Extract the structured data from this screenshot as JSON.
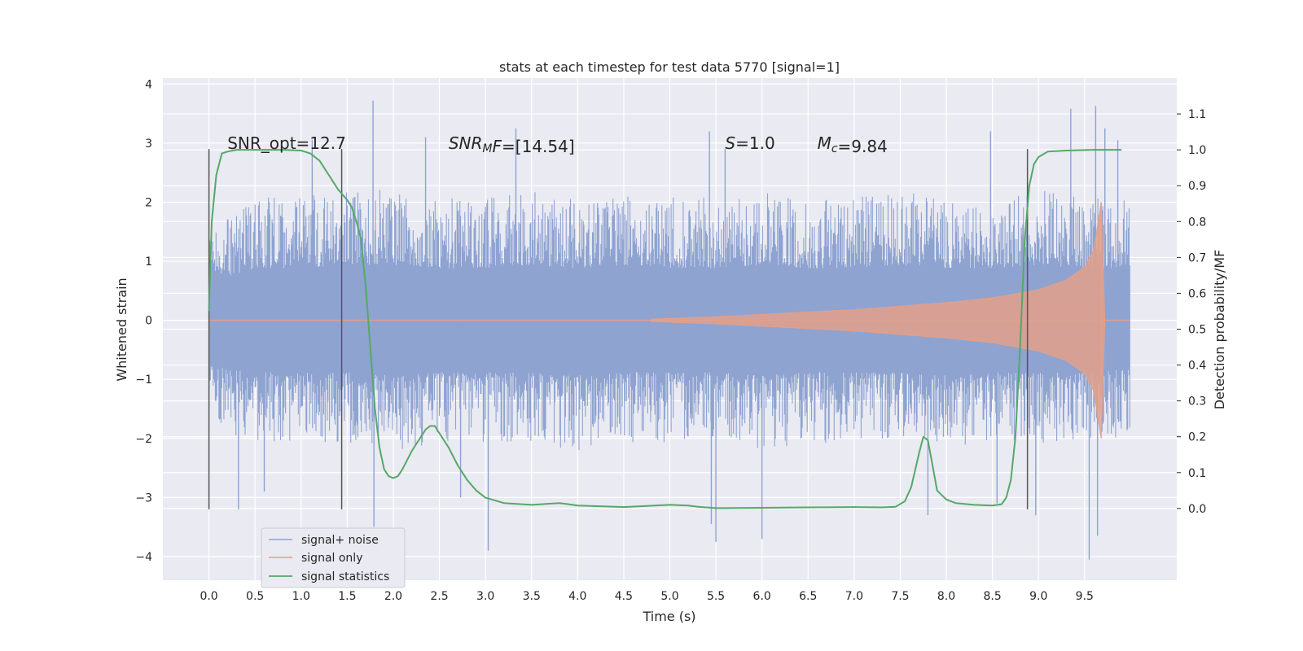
{
  "chart_data": {
    "type": "line",
    "title": "stats at each timestep for test data 5770 [signal=1]",
    "xlabel": "Time (s)",
    "ylabel": "Whitened strain",
    "y2label": "Detection probability/MF",
    "xlim": [
      -0.5,
      10.5
    ],
    "ylim": [
      -4.4,
      4.1
    ],
    "y2lim": [
      -0.2,
      1.2
    ],
    "x_ticks": [
      0.0,
      0.5,
      1.0,
      1.5,
      2.0,
      2.5,
      3.0,
      3.5,
      4.0,
      4.5,
      5.0,
      5.5,
      6.0,
      6.5,
      7.0,
      7.5,
      8.0,
      8.5,
      9.0,
      9.5
    ],
    "x_tick_labels": [
      "0.0",
      "0.5",
      "1.0",
      "1.5",
      "2.0",
      "2.5",
      "3.0",
      "3.5",
      "4.0",
      "4.5",
      "5.0",
      "5.5",
      "6.0",
      "6.5",
      "7.0",
      "7.5",
      "8.0",
      "8.5",
      "9.0",
      "9.5"
    ],
    "y_ticks": [
      -4,
      -3,
      -2,
      -1,
      0,
      1,
      2,
      3,
      4
    ],
    "y_tick_labels": [
      "−4",
      "−3",
      "−2",
      "−1",
      "0",
      "1",
      "2",
      "3",
      "4"
    ],
    "y2_ticks": [
      0.0,
      0.1,
      0.2,
      0.3,
      0.4,
      0.5,
      0.6,
      0.7,
      0.8,
      0.9,
      1.0,
      1.1
    ],
    "y2_tick_labels": [
      "0.0",
      "0.1",
      "0.2",
      "0.3",
      "0.4",
      "0.5",
      "0.6",
      "0.7",
      "0.8",
      "0.9",
      "1.0",
      "1.1"
    ],
    "grid": true,
    "legend": {
      "placement": "lower-left",
      "entries": [
        {
          "label": "signal+ noise",
          "color": "#8ea3d0"
        },
        {
          "label": "signal only",
          "color": "#e3a08a"
        },
        {
          "label": "signal statistics",
          "color": "#55a868"
        }
      ]
    },
    "annotations": [
      {
        "id": "snr-opt",
        "x": 0.2,
        "y": 2.9,
        "parts": [
          {
            "t": "SNR_opt=12.7"
          }
        ]
      },
      {
        "id": "snr-mf",
        "x": 2.6,
        "y": 2.9,
        "parts": [
          {
            "t": "SNR",
            "i": true
          },
          {
            "t": "M",
            "i": true,
            "sub": true
          },
          {
            "t": "F",
            "i": true
          },
          {
            "t": "=[14.54]"
          }
        ]
      },
      {
        "id": "s-value",
        "x": 5.6,
        "y": 2.9,
        "parts": [
          {
            "t": "S",
            "i": true
          },
          {
            "t": "=1.0"
          }
        ]
      },
      {
        "id": "mc-value",
        "x": 6.6,
        "y": 2.9,
        "parts": [
          {
            "t": "M",
            "i": true
          },
          {
            "t": "c",
            "i": true,
            "sub": true
          },
          {
            "t": "=9.84"
          }
        ]
      }
    ],
    "vlines": [
      {
        "x": 0.0,
        "y_range": [
          -3.2,
          2.9
        ]
      },
      {
        "x": 1.44,
        "y_range": [
          -3.2,
          2.9
        ]
      },
      {
        "x": 8.88,
        "y_range": [
          -3.2,
          2.9
        ]
      }
    ],
    "series": [
      {
        "name": "signal+ noise",
        "axis": "left",
        "color": "#8ea3d0",
        "x_start": 0.0,
        "x_end": 9.99,
        "envelope_hi": [
          1.2,
          1.6,
          1.6,
          1.7,
          1.7,
          1.6,
          1.6,
          1.7,
          1.6,
          1.7,
          1.6,
          1.6,
          1.7,
          1.6,
          1.6,
          1.7,
          1.6,
          1.6,
          1.7,
          1.6,
          1.6
        ],
        "envelope_lo": [
          -1.4,
          -1.6,
          -1.6,
          -1.6,
          -1.7,
          -1.6,
          -1.6,
          -1.6,
          -1.7,
          -1.6,
          -1.6,
          -1.6,
          -1.7,
          -1.6,
          -1.6,
          -1.6,
          -1.7,
          -1.6,
          -1.6,
          -1.6,
          -1.5
        ],
        "peaks": [
          {
            "x": 1.78,
            "y": 3.72
          },
          {
            "x": 1.79,
            "y": -3.5
          },
          {
            "x": 2.35,
            "y": 3.1
          },
          {
            "x": 3.03,
            "y": -3.9
          },
          {
            "x": 3.33,
            "y": 3.25
          },
          {
            "x": 5.43,
            "y": 3.2
          },
          {
            "x": 5.45,
            "y": -3.45
          },
          {
            "x": 5.5,
            "y": -3.75
          },
          {
            "x": 5.6,
            "y": 2.9
          },
          {
            "x": 6.0,
            "y": -3.7
          },
          {
            "x": 8.97,
            "y": -3.3
          },
          {
            "x": 9.35,
            "y": 3.58
          },
          {
            "x": 9.62,
            "y": 3.63
          },
          {
            "x": 9.55,
            "y": -4.05
          },
          {
            "x": 9.64,
            "y": -3.65
          },
          {
            "x": 0.32,
            "y": -3.2
          },
          {
            "x": 0.6,
            "y": -2.9
          },
          {
            "x": 2.73,
            "y": -3.0
          },
          {
            "x": 7.8,
            "y": -3.3
          },
          {
            "x": 8.55,
            "y": -3.1
          },
          {
            "x": 9.72,
            "y": 3.25
          },
          {
            "x": 9.86,
            "y": 3.05
          },
          {
            "x": 8.48,
            "y": 3.2
          },
          {
            "x": 1.12,
            "y": 3.05
          }
        ]
      },
      {
        "name": "signal only",
        "axis": "left",
        "color": "#e3a08a",
        "x_start": 0.0,
        "x_end": 9.99,
        "chirp_start": 4.8,
        "merger_x": 9.68,
        "envelope_points": [
          [
            4.8,
            0.02
          ],
          [
            5.5,
            0.06
          ],
          [
            6.0,
            0.1
          ],
          [
            6.5,
            0.14
          ],
          [
            7.0,
            0.18
          ],
          [
            7.5,
            0.24
          ],
          [
            8.0,
            0.3
          ],
          [
            8.5,
            0.38
          ],
          [
            9.0,
            0.52
          ],
          [
            9.3,
            0.68
          ],
          [
            9.5,
            0.9
          ],
          [
            9.6,
            1.2
          ],
          [
            9.65,
            1.7
          ],
          [
            9.68,
            2.0
          ]
        ]
      },
      {
        "name": "signal statistics",
        "axis": "right",
        "color": "#55a868",
        "x": [
          0.0,
          0.03,
          0.08,
          0.14,
          0.2,
          0.3,
          0.5,
          0.8,
          1.0,
          1.1,
          1.2,
          1.3,
          1.4,
          1.5,
          1.55,
          1.6,
          1.65,
          1.7,
          1.75,
          1.8,
          1.85,
          1.9,
          1.95,
          2.0,
          2.05,
          2.1,
          2.2,
          2.3,
          2.35,
          2.4,
          2.45,
          2.5,
          2.6,
          2.7,
          2.8,
          2.9,
          3.0,
          3.2,
          3.5,
          3.8,
          3.9,
          4.0,
          4.5,
          5.0,
          5.2,
          5.3,
          5.5,
          6.0,
          6.5,
          7.0,
          7.3,
          7.45,
          7.55,
          7.62,
          7.7,
          7.75,
          7.8,
          7.85,
          7.9,
          8.0,
          8.1,
          8.3,
          8.5,
          8.6,
          8.65,
          8.7,
          8.75,
          8.8,
          8.85,
          8.9,
          8.95,
          9.0,
          9.1,
          9.3,
          9.6,
          9.9
        ],
        "y": [
          0.55,
          0.8,
          0.93,
          0.99,
          0.995,
          1.0,
          1.0,
          1.0,
          0.998,
          0.99,
          0.97,
          0.93,
          0.89,
          0.86,
          0.84,
          0.8,
          0.75,
          0.62,
          0.45,
          0.28,
          0.17,
          0.11,
          0.09,
          0.085,
          0.09,
          0.11,
          0.16,
          0.2,
          0.22,
          0.23,
          0.23,
          0.21,
          0.17,
          0.12,
          0.08,
          0.05,
          0.03,
          0.015,
          0.01,
          0.015,
          0.012,
          0.008,
          0.004,
          0.01,
          0.008,
          0.005,
          0.001,
          0.002,
          0.003,
          0.004,
          0.003,
          0.005,
          0.02,
          0.06,
          0.15,
          0.2,
          0.19,
          0.12,
          0.05,
          0.025,
          0.015,
          0.01,
          0.008,
          0.012,
          0.03,
          0.08,
          0.2,
          0.45,
          0.75,
          0.9,
          0.96,
          0.98,
          0.995,
          0.998,
          1.0,
          1.0
        ]
      }
    ]
  }
}
